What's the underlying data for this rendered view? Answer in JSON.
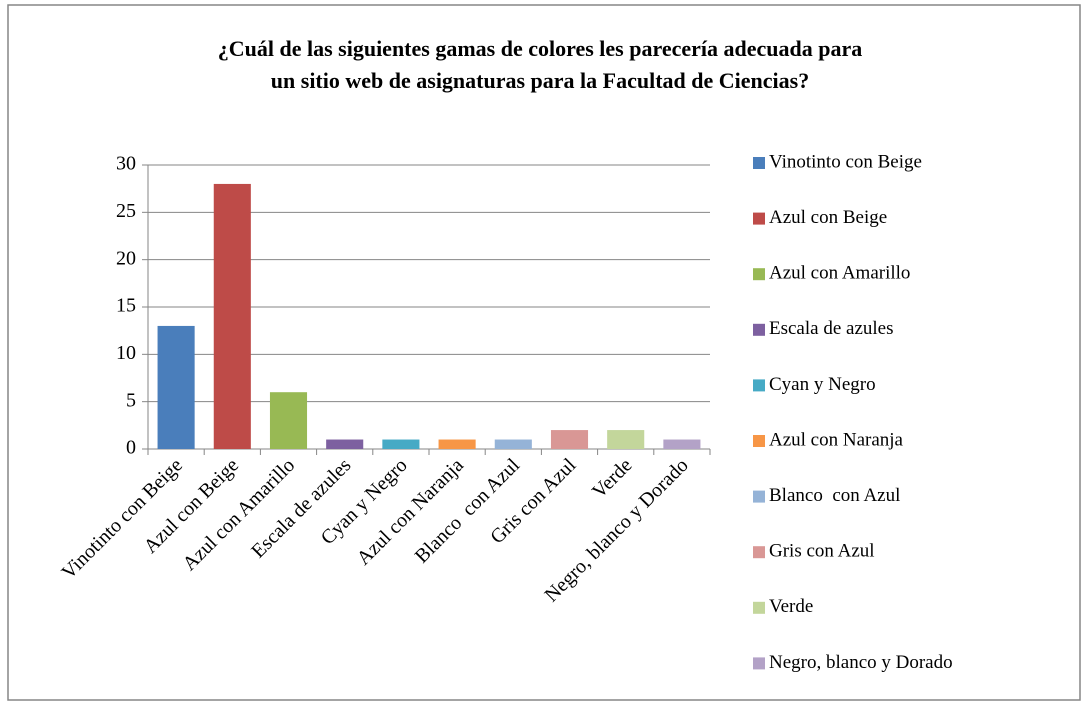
{
  "chart_data": {
    "type": "bar",
    "title": [
      "¿Cuál de las siguientes gamas de colores les parecería adecuada para",
      "un sitio web de asignaturas para la Facultad de Ciencias?"
    ],
    "categories": [
      "Vinotinto con Beige",
      "Azul con Beige",
      "Azul con Amarillo",
      "Escala de azules",
      "Cyan y Negro",
      "Azul con Naranja",
      "Blanco  con Azul",
      "Gris con Azul",
      "Verde",
      "Negro, blanco y Dorado"
    ],
    "values": [
      13,
      28,
      6,
      1,
      1,
      1,
      1,
      2,
      2,
      1
    ],
    "colors": [
      "#4a7ebb",
      "#be4b48",
      "#98b954",
      "#7d60a0",
      "#46aac5",
      "#f79646",
      "#95b3d7",
      "#d99795",
      "#c3d69b",
      "#b3a2c7"
    ],
    "ylim": [
      0,
      30
    ],
    "yticks": [
      0,
      5,
      10,
      15,
      20,
      25,
      30
    ],
    "grid": true,
    "legend": "right"
  }
}
